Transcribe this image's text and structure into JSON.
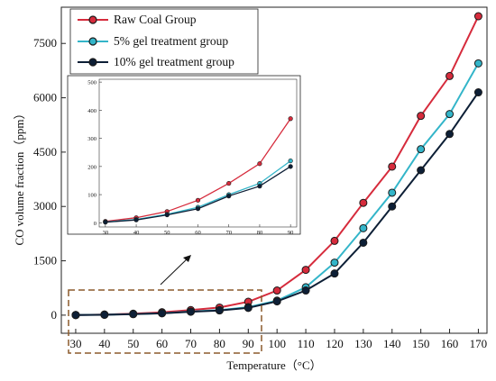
{
  "chart_data": {
    "type": "line",
    "xlabel": "Temperature（°C）",
    "ylabel": "CO volume fraction（ppm）",
    "x": [
      30,
      40,
      50,
      60,
      70,
      80,
      90,
      100,
      110,
      120,
      130,
      140,
      150,
      160,
      170
    ],
    "xlim": [
      25,
      173
    ],
    "ylim": [
      -500,
      8500
    ],
    "yticks": [
      0,
      1500,
      3000,
      4500,
      6000,
      7500
    ],
    "grid": false,
    "legend_position": "top-left",
    "series": [
      {
        "name": "Raw Coal Group",
        "color": "#d62b3c",
        "values": [
          5,
          18,
          40,
          80,
          140,
          210,
          370,
          680,
          1250,
          2050,
          3100,
          4100,
          5500,
          6600,
          8250
        ]
      },
      {
        "name": "5% gel treatment group",
        "color": "#33b5c9",
        "values": [
          3,
          12,
          30,
          55,
          100,
          140,
          220,
          400,
          770,
          1450,
          2400,
          3380,
          4580,
          5550,
          6950
        ]
      },
      {
        "name": "10% gel treatment group",
        "color": "#0d1f36",
        "values": [
          2,
          10,
          28,
          50,
          95,
          130,
          200,
          380,
          680,
          1150,
          2000,
          3000,
          4000,
          5000,
          6150
        ]
      }
    ],
    "inset": {
      "x": [
        30,
        40,
        50,
        60,
        70,
        80,
        90
      ],
      "xticks": [
        30,
        40,
        50,
        60,
        70,
        80,
        90
      ],
      "yticks": [
        0,
        100,
        200,
        300,
        400,
        500
      ],
      "xlim": [
        28,
        92
      ],
      "ylim": [
        -15,
        510
      ],
      "series": [
        {
          "values": [
            5,
            18,
            40,
            80,
            140,
            210,
            370
          ]
        },
        {
          "values": [
            3,
            12,
            30,
            55,
            100,
            140,
            220
          ]
        },
        {
          "values": [
            2,
            10,
            28,
            50,
            95,
            130,
            200
          ]
        }
      ]
    }
  }
}
